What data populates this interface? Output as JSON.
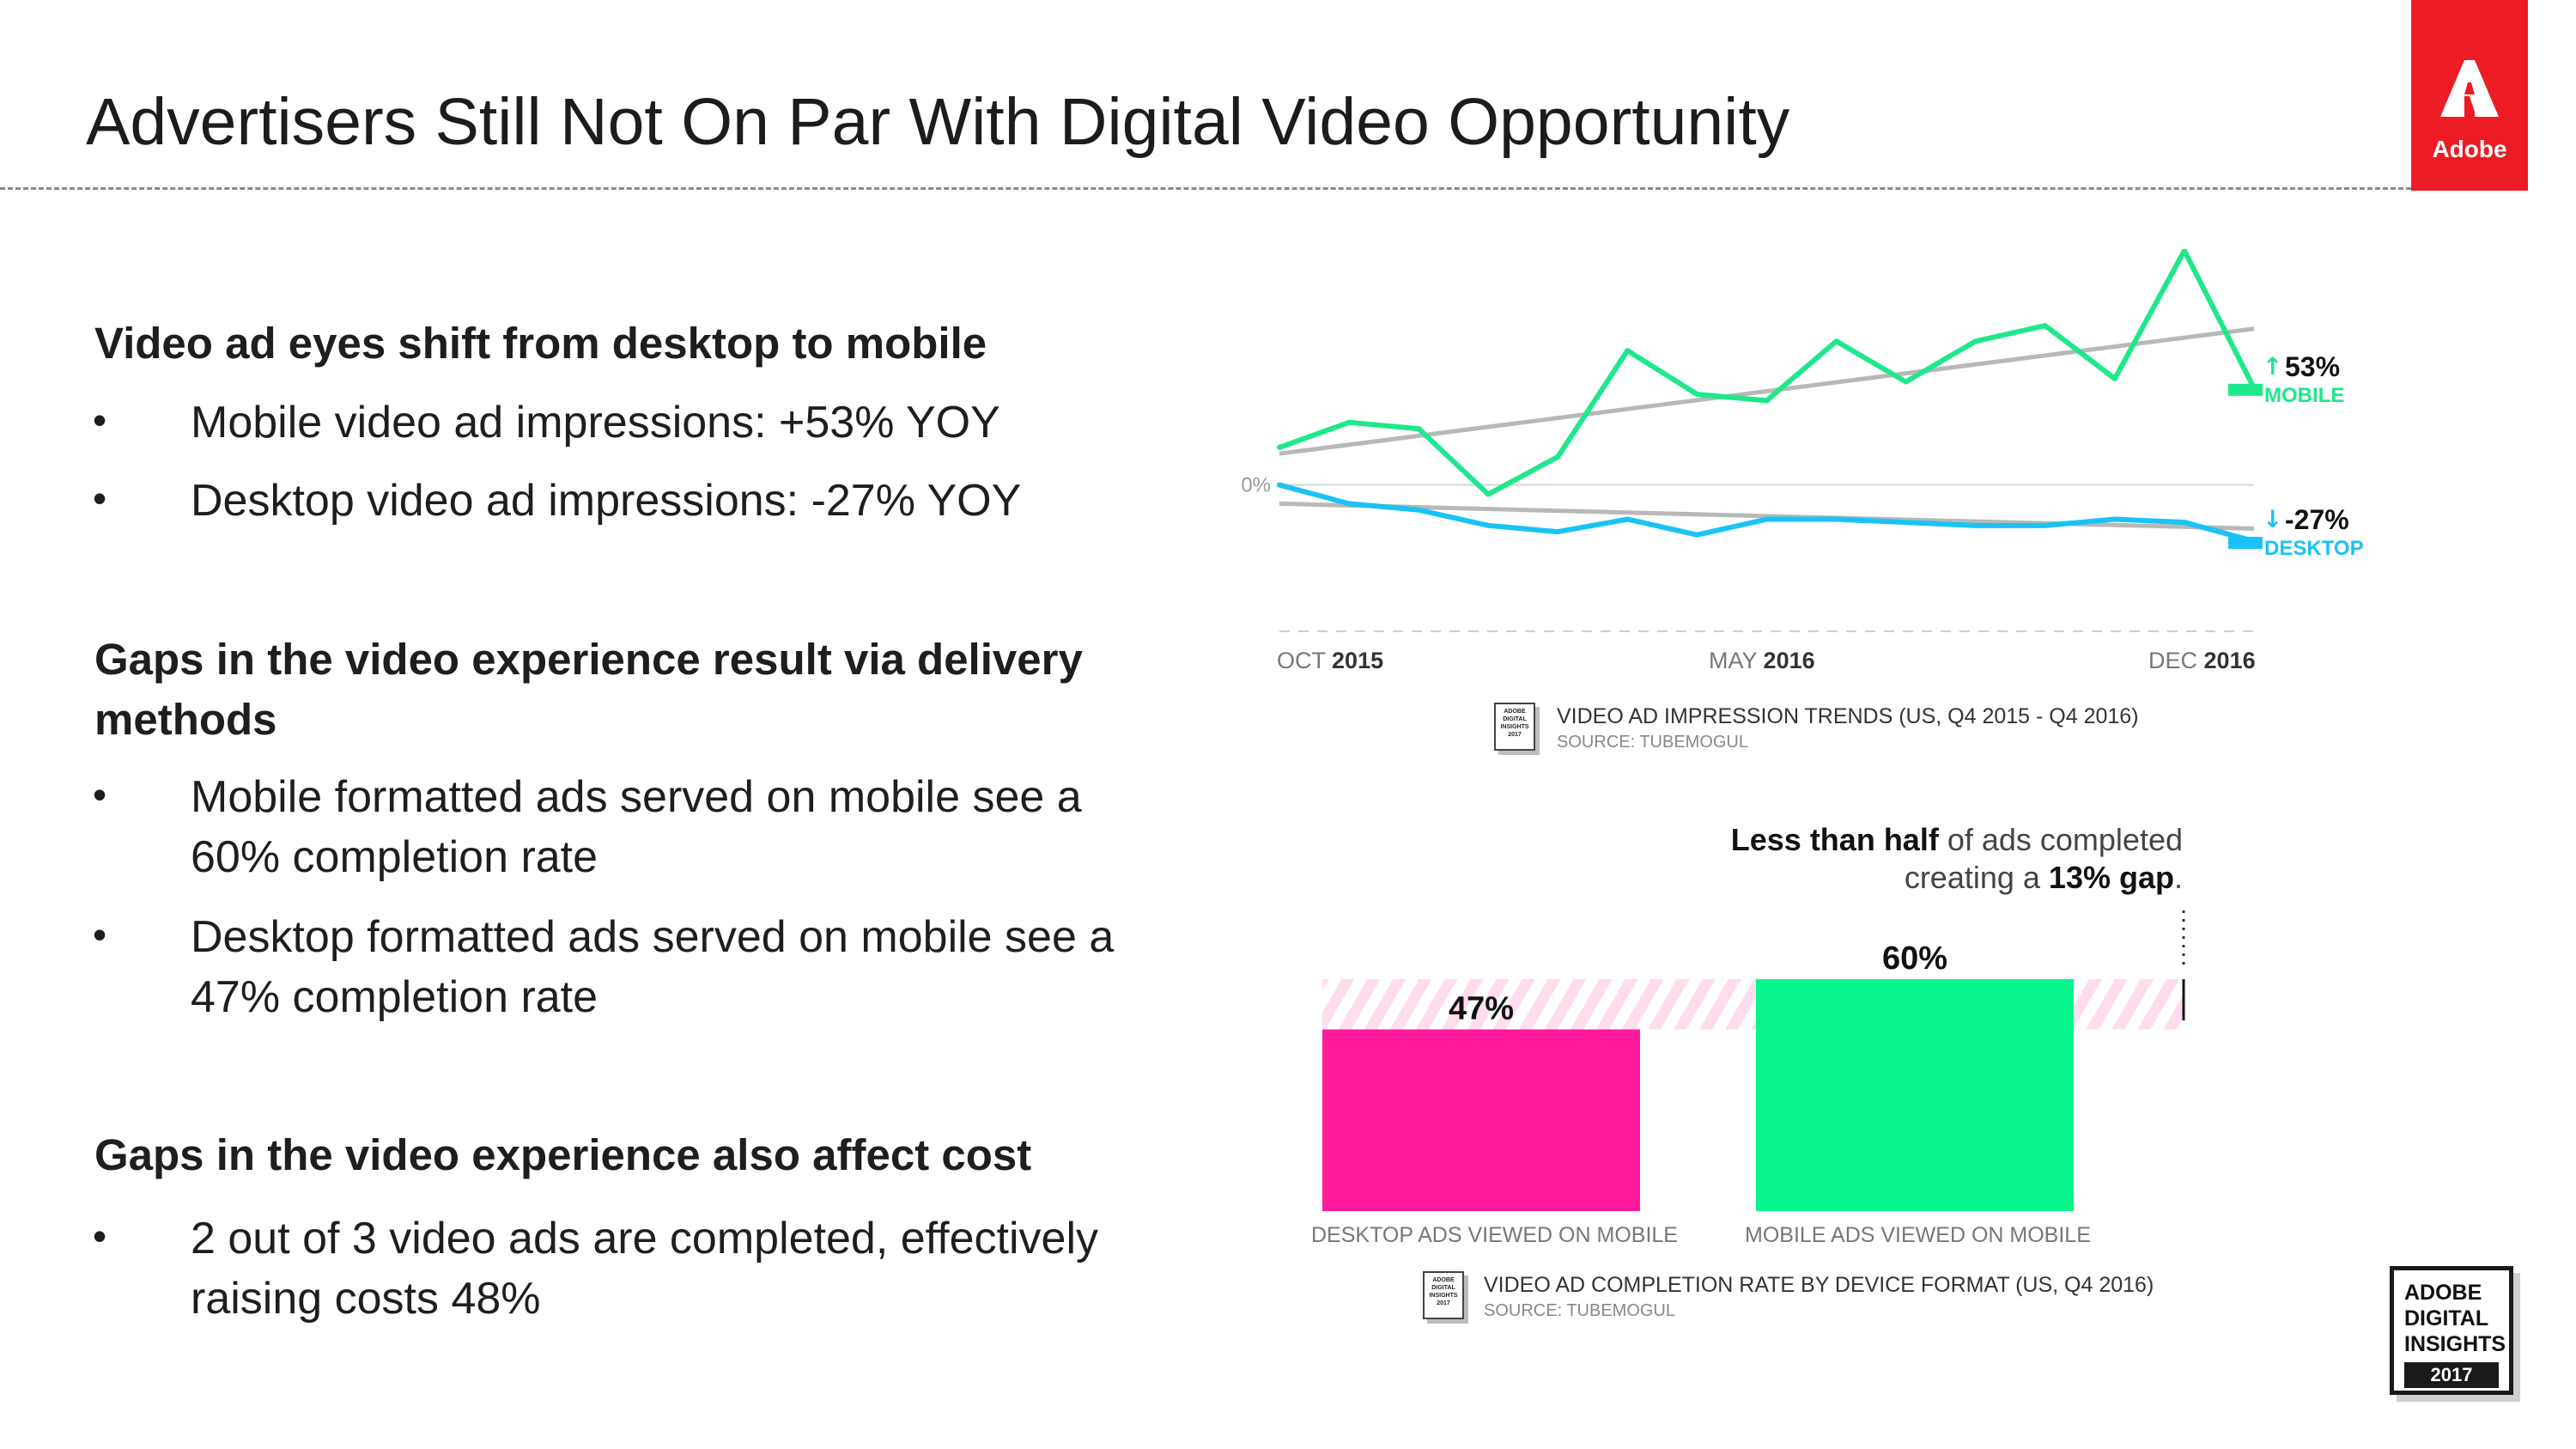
{
  "slide": {
    "title": "Advertisers Still Not On Par With Digital Video Opportunity",
    "logo_label": "Adobe",
    "brand_color": "#ec1c24"
  },
  "left": {
    "sections": [
      {
        "heading": "Video ad eyes shift from desktop to mobile",
        "bullets": [
          "Mobile video ad impressions: +53% YOY",
          "Desktop video ad impressions: -27% YOY"
        ]
      },
      {
        "heading_line1": "Gaps in the video experience result via delivery",
        "heading_line2": "methods",
        "bullets": [
          {
            "line1": "Mobile formatted ads served on mobile see a",
            "line2": "60% completion rate"
          },
          {
            "line1": "Desktop formatted ads served on mobile see a",
            "line2": "47% completion rate"
          }
        ]
      },
      {
        "heading": "Gaps in the video experience also affect cost",
        "bullets": [
          {
            "line1": "2 out of 3 video ads are completed, effectively",
            "line2": "raising costs 48%"
          }
        ]
      }
    ],
    "bullet_glyph": "•"
  },
  "chart_data": [
    {
      "type": "line",
      "title": "VIDEO AD IMPRESSION TRENDS (US, Q4 2015 - Q4 2016)",
      "source": "SOURCE: TUBEMOGUL",
      "zero_label": "0%",
      "x_labels": [
        {
          "month": "OCT",
          "year": "2015"
        },
        {
          "month": "MAY",
          "year": "2016"
        },
        {
          "month": "DEC",
          "year": "2016"
        }
      ],
      "x": [
        0,
        1,
        2,
        3,
        4,
        5,
        6,
        7,
        8,
        9,
        10,
        11,
        12,
        13,
        14
      ],
      "ylim": [
        -40,
        70
      ],
      "series": [
        {
          "name": "MOBILE",
          "color": "#1ee88a",
          "end_label": "53%",
          "direction": "up",
          "values": [
            12,
            20,
            18,
            -3,
            9,
            43,
            29,
            27,
            46,
            33,
            46,
            51,
            34,
            75,
            31
          ]
        },
        {
          "name": "DESKTOP",
          "color": "#19c3f5",
          "end_label": "-27%",
          "direction": "down",
          "values": [
            0,
            -6,
            -8,
            -13,
            -15,
            -11,
            -16,
            -11,
            -11,
            -12,
            -13,
            -13,
            -11,
            -12,
            -18
          ]
        }
      ],
      "trendlines": [
        {
          "for": "MOBILE",
          "start": 10,
          "end": 50,
          "color": "#b8b8b8"
        },
        {
          "for": "DESKTOP",
          "start": -6,
          "end": -14,
          "color": "#b8b8b8"
        }
      ],
      "grid": false
    },
    {
      "type": "bar",
      "title": "VIDEO AD COMPLETION RATE BY DEVICE FORMAT (US, Q4 2016)",
      "source": "SOURCE: TUBEMOGUL",
      "categories": [
        "DESKTOP ADS VIEWED ON MOBILE",
        "MOBILE ADS VIEWED ON MOBILE"
      ],
      "values": [
        47,
        60
      ],
      "value_labels": [
        "47%",
        "60%"
      ],
      "colors": [
        "#ff1a9c",
        "#06f58c"
      ],
      "ylim": [
        0,
        60
      ],
      "gap_band_color": "#ffd6ec",
      "callout": {
        "bold1": "Less than half",
        "text1": " of ads completed",
        "text2": "creating a ",
        "bold2": "13% gap",
        "end": "."
      }
    }
  ],
  "icon_label_lines": [
    "ADOBE",
    "DIGITAL",
    "INSIGHTS",
    "2017"
  ],
  "badge": {
    "line1": "ADOBE",
    "line2": "DIGITAL",
    "line3": "INSIGHTS",
    "year": "2017"
  }
}
